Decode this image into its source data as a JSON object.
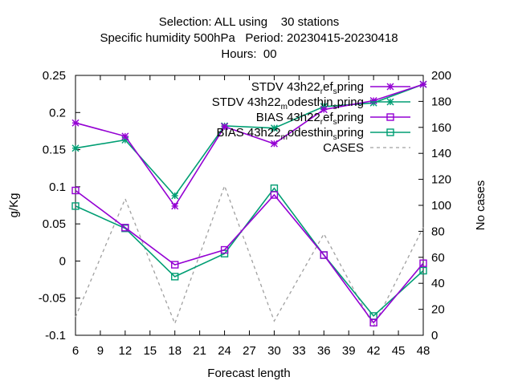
{
  "chart_data": {
    "type": "line",
    "title_lines": [
      "Selection: ALL using    30 stations",
      "Specific humidity 500hPa   Period: 20230415-20230418",
      "Hours:  00"
    ],
    "xlabel": "Forecast length",
    "ylabel": "g/Kg",
    "y2label": "No cases",
    "xlim": [
      6,
      48
    ],
    "ylim": [
      -0.1,
      0.25
    ],
    "y2lim": [
      0,
      200
    ],
    "x_ticks": [
      "6",
      "9",
      "12",
      "15",
      "18",
      "21",
      "24",
      "27",
      "30",
      "33",
      "36",
      "39",
      "42",
      "45",
      "48"
    ],
    "y_ticks": [
      "-0.1",
      "-0.05",
      "0",
      "0.05",
      "0.1",
      "0.15",
      "0.2",
      "0.25"
    ],
    "y2_ticks": [
      "0",
      "20",
      "40",
      "60",
      "80",
      "100",
      "120",
      "140",
      "160",
      "180",
      "200"
    ],
    "x": [
      6,
      12,
      18,
      24,
      30,
      36,
      42,
      48
    ],
    "legend_position": "top-right",
    "series": [
      {
        "label_pre": "STDV 43h22",
        "label_parts": [
          [
            "r",
            "sub"
          ],
          [
            "ef",
            ""
          ],
          [
            "s",
            "sub"
          ],
          [
            "pring",
            ""
          ]
        ],
        "color": "#9400d3",
        "marker": "star",
        "axis": "y",
        "values": [
          0.186,
          0.168,
          0.074,
          0.181,
          0.158,
          0.204,
          0.216,
          0.238
        ]
      },
      {
        "label_pre": "STDV 43h22",
        "label_parts": [
          [
            "m",
            "sub"
          ],
          [
            "odesthin",
            ""
          ],
          [
            "s",
            "sub"
          ],
          [
            "pring",
            ""
          ]
        ],
        "color": "#009e73",
        "marker": "star",
        "axis": "y",
        "values": [
          0.152,
          0.163,
          0.088,
          0.182,
          0.179,
          0.208,
          0.213,
          0.238
        ]
      },
      {
        "label_pre": "BIAS 43h22",
        "label_parts": [
          [
            "r",
            "sub"
          ],
          [
            "ef",
            ""
          ],
          [
            "s",
            "sub"
          ],
          [
            "pring",
            ""
          ]
        ],
        "color": "#9400d3",
        "marker": "square",
        "axis": "y",
        "values": [
          0.095,
          0.045,
          -0.005,
          0.015,
          0.089,
          0.008,
          -0.083,
          -0.003
        ]
      },
      {
        "label_pre": "BIAS 43h22",
        "label_parts": [
          [
            "m",
            "sub"
          ],
          [
            "odesthin",
            ""
          ],
          [
            "s",
            "sub"
          ],
          [
            "pring",
            ""
          ]
        ],
        "color": "#009e73",
        "marker": "square",
        "axis": "y",
        "values": [
          0.074,
          0.044,
          -0.021,
          0.01,
          0.098,
          0.008,
          -0.074,
          -0.013
        ]
      },
      {
        "label_pre": "CASES",
        "label_parts": [],
        "color": "#a0a0a0",
        "marker": "none",
        "dashed": true,
        "axis": "y2",
        "values": [
          14,
          105,
          9,
          115,
          11,
          78,
          7,
          83
        ]
      }
    ]
  }
}
